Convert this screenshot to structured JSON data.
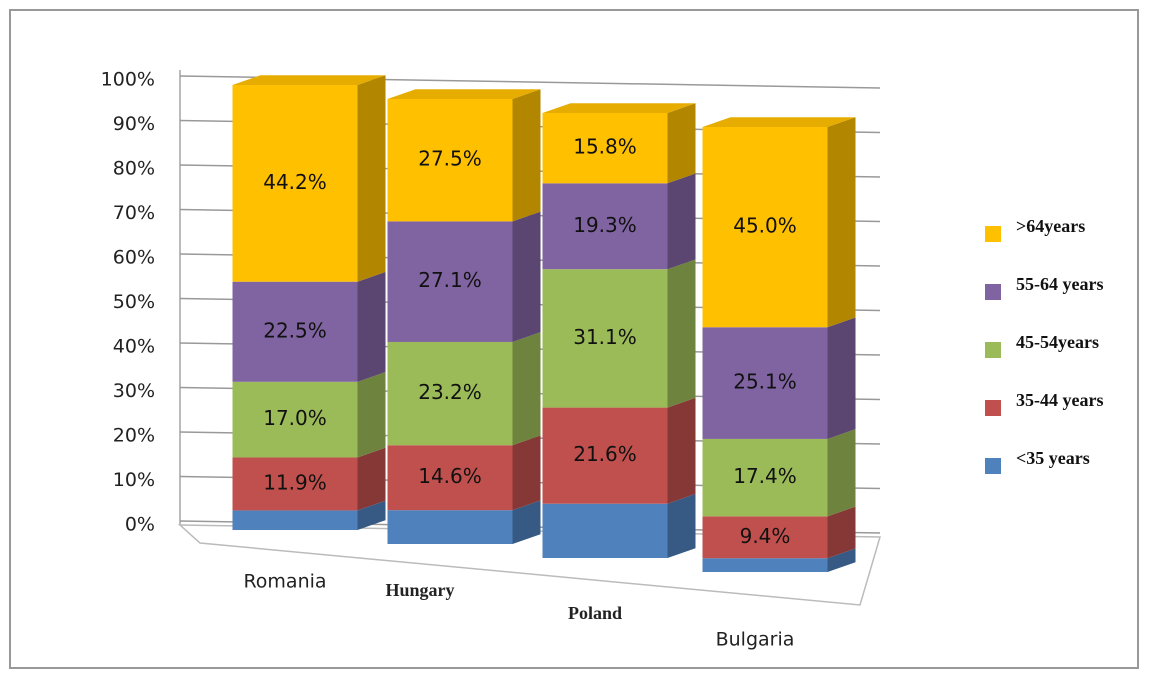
{
  "chart_data": {
    "type": "stacked_bar_3d",
    "categories": [
      "Romania",
      "Hungary",
      "Poland",
      "Bulgaria"
    ],
    "series": [
      {
        "name": "<35 years",
        "color": "#4f81bd",
        "values": [
          4.4,
          7.6,
          12.2,
          3.1
        ]
      },
      {
        "name": "35-44 years",
        "color": "#c0504d",
        "values": [
          11.9,
          14.6,
          21.6,
          9.4
        ],
        "value_labels": [
          "11.9%",
          "14.6%",
          "21.6%",
          "9.4%"
        ]
      },
      {
        "name": "45-54years",
        "color": "#9bbb59",
        "values": [
          17.0,
          23.2,
          31.1,
          17.4
        ],
        "value_labels": [
          "17.0%",
          "23.2%",
          "31.1%",
          "17.4%"
        ]
      },
      {
        "name": "55-64 years",
        "color": "#8064a2",
        "values": [
          22.5,
          27.1,
          19.3,
          25.1
        ],
        "value_labels": [
          "22.5%",
          "27.1%",
          "19.3%",
          "25.1%"
        ]
      },
      {
        "name": ">64years",
        "color": "#ffc000",
        "values": [
          44.2,
          27.5,
          15.8,
          45.0
        ],
        "value_labels": [
          "44.2%",
          "27.5%",
          "15.8%",
          "45.0%"
        ]
      }
    ],
    "ylim": [
      0,
      100
    ],
    "yticks": [
      {
        "value": 0,
        "label": "0%"
      },
      {
        "value": 10,
        "label": "10%"
      },
      {
        "value": 20,
        "label": "20%"
      },
      {
        "value": 30,
        "label": "30%"
      },
      {
        "value": 40,
        "label": "40%"
      },
      {
        "value": 50,
        "label": "50%"
      },
      {
        "value": 60,
        "label": "60%"
      },
      {
        "value": 70,
        "label": "70%"
      },
      {
        "value": 80,
        "label": "80%"
      },
      {
        "value": 90,
        "label": "90%"
      },
      {
        "value": 100,
        "label": "100%"
      }
    ],
    "grid": true,
    "legend": "right"
  }
}
